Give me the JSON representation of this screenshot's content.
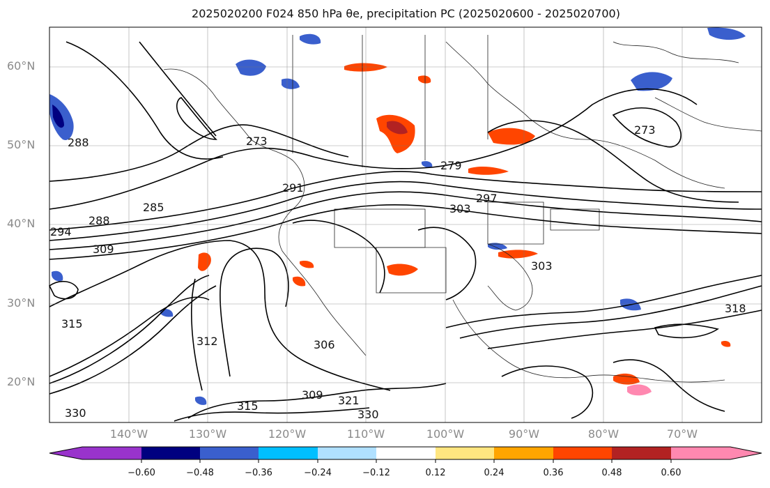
{
  "title": "2025020200 F024 850 hPa θe, precipitation PC (2025020600 - 2025020700)",
  "map": {
    "lat_labels": [
      "60°N",
      "50°N",
      "40°N",
      "30°N",
      "20°N"
    ],
    "lon_labels": [
      "140°W",
      "130°W",
      "120°W",
      "110°W",
      "100°W",
      "90°W",
      "80°W",
      "70°W"
    ],
    "contour_labels": [
      "273",
      "273",
      "279",
      "285",
      "288",
      "291",
      "297",
      "303",
      "303",
      "306",
      "309",
      "309",
      "312",
      "315",
      "315",
      "318",
      "321",
      "330",
      "330",
      "294",
      "288"
    ]
  },
  "colorbar": {
    "tick_labels": [
      "−0.60",
      "−0.48",
      "−0.36",
      "−0.24",
      "−0.12",
      "0.12",
      "0.24",
      "0.36",
      "0.48",
      "0.60"
    ],
    "colors": [
      "#9933cc",
      "#000080",
      "#3a5fcd",
      "#00bfff",
      "#b0e0ff",
      "#ffffff",
      "#ffe680",
      "#ffa500",
      "#ff4500",
      "#b22222",
      "#ff88b0"
    ]
  }
}
